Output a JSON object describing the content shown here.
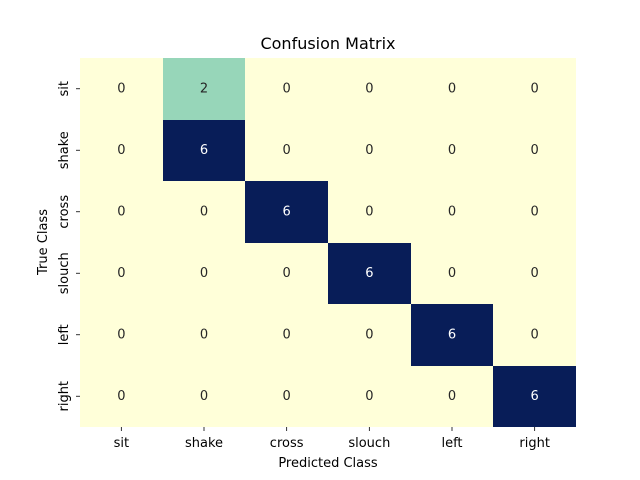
{
  "chart_data": {
    "type": "heatmap",
    "title": "Confusion Matrix",
    "xlabel": "Predicted Class",
    "ylabel": "True Class",
    "x_categories": [
      "sit",
      "shake",
      "cross",
      "slouch",
      "left",
      "right"
    ],
    "y_categories": [
      "sit",
      "shake",
      "cross",
      "slouch",
      "left",
      "right"
    ],
    "values": [
      [
        0,
        2,
        0,
        0,
        0,
        0
      ],
      [
        0,
        6,
        0,
        0,
        0,
        0
      ],
      [
        0,
        0,
        6,
        0,
        0,
        0
      ],
      [
        0,
        0,
        0,
        6,
        0,
        0
      ],
      [
        0,
        0,
        0,
        0,
        6,
        0
      ],
      [
        0,
        0,
        0,
        0,
        0,
        6
      ]
    ],
    "colormap": "YlGnBu",
    "value_range": [
      0,
      6
    ],
    "colorbar": false,
    "grid": false
  }
}
